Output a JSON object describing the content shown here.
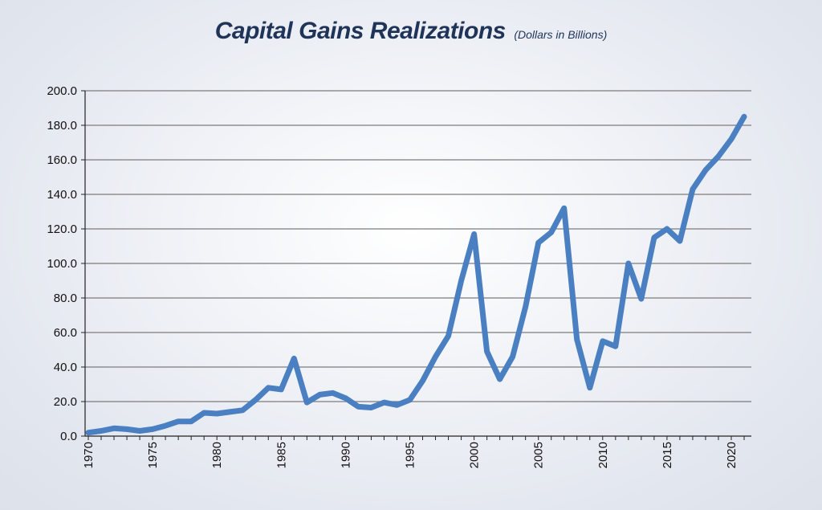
{
  "title": "Capital Gains Realizations",
  "subtitle": "(Dollars in Billions)",
  "chart_data": {
    "type": "line",
    "title": "Capital Gains Realizations",
    "subtitle": "(Dollars in Billions)",
    "xlabel": "",
    "ylabel": "",
    "xlim": [
      1970,
      2021
    ],
    "ylim": [
      0,
      200
    ],
    "y_ticks": [
      "0.0",
      "20.0",
      "40.0",
      "60.0",
      "80.0",
      "100.0",
      "120.0",
      "140.0",
      "160.0",
      "180.0",
      "200.0"
    ],
    "x_ticks": [
      "1970",
      "1975",
      "1980",
      "1985",
      "1990",
      "1995",
      "2000",
      "2005",
      "2010",
      "2015",
      "2020"
    ],
    "grid": true,
    "line_color": "#4a7fc1",
    "series": [
      {
        "name": "Capital Gains Realizations",
        "x": [
          1970,
          1971,
          1972,
          1973,
          1974,
          1975,
          1976,
          1977,
          1978,
          1979,
          1980,
          1981,
          1982,
          1983,
          1984,
          1985,
          1986,
          1987,
          1988,
          1989,
          1990,
          1991,
          1992,
          1993,
          1994,
          1995,
          1996,
          1997,
          1998,
          1999,
          2000,
          2001,
          2002,
          2003,
          2004,
          2005,
          2006,
          2007,
          2008,
          2009,
          2010,
          2011,
          2012,
          2013,
          2014,
          2015,
          2016,
          2017,
          2018,
          2019,
          2020,
          2021
        ],
        "values": [
          2,
          3,
          4.5,
          4,
          3,
          4,
          6,
          8.5,
          8.5,
          13.5,
          13,
          14,
          15,
          21,
          28,
          27,
          45,
          19.5,
          24,
          25,
          22,
          17,
          16.5,
          19.5,
          18,
          21,
          32,
          46,
          58,
          90,
          117,
          49,
          33,
          46,
          75,
          112,
          118,
          132,
          56,
          28,
          55,
          52,
          100,
          79.5,
          115,
          120,
          113,
          143,
          154,
          162,
          172,
          185
        ]
      }
    ]
  }
}
